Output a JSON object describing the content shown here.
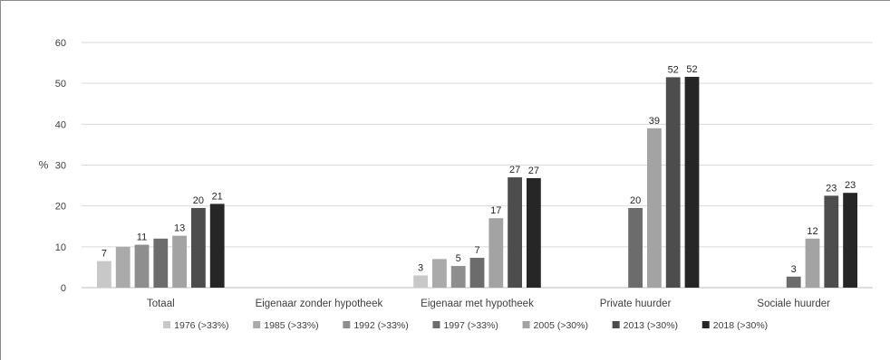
{
  "chart_data": {
    "type": "bar",
    "ylabel": "%",
    "ylim": [
      0,
      60
    ],
    "yticks": [
      0,
      10,
      20,
      30,
      40,
      50,
      60
    ],
    "grid": true,
    "legend_position": "bottom",
    "categories": [
      "Totaal",
      "Eigenaar zonder hypotheek",
      "Eigenaar met hypotheek",
      "Private huurder",
      "Sociale huurder"
    ],
    "series": [
      {
        "name": "1976 (>33%)",
        "color": "#c8c8c8",
        "values": [
          6.5,
          null,
          3,
          null,
          null
        ],
        "labels": [
          "7",
          "",
          "3",
          "",
          ""
        ]
      },
      {
        "name": "1985 (>33%)",
        "color": "#aaaaaa",
        "values": [
          10,
          null,
          7,
          null,
          null
        ],
        "labels": [
          "",
          "",
          "",
          "",
          ""
        ]
      },
      {
        "name": "1992 (>33%)",
        "color": "#8e8e8e",
        "values": [
          10.5,
          null,
          5.3,
          null,
          null
        ],
        "labels": [
          "11",
          "",
          "5",
          "",
          ""
        ]
      },
      {
        "name": "1997 (>33%)",
        "color": "#6c6c6c",
        "values": [
          12,
          null,
          7.3,
          19.5,
          2.7
        ],
        "labels": [
          "",
          "",
          "7",
          "20",
          "3"
        ]
      },
      {
        "name": "2005 (>30%)",
        "color": "#a3a3a3",
        "values": [
          12.7,
          null,
          17,
          39,
          12
        ],
        "labels": [
          "13",
          "",
          "17",
          "39",
          "12"
        ]
      },
      {
        "name": "2013 (>30%)",
        "color": "#4d4d4d",
        "values": [
          19.5,
          null,
          27,
          51.5,
          22.5
        ],
        "labels": [
          "20",
          "",
          "27",
          "52",
          "23"
        ]
      },
      {
        "name": "2018 (>30%)",
        "color": "#262626",
        "values": [
          20.5,
          null,
          26.8,
          51.6,
          23.2
        ],
        "labels": [
          "21",
          "",
          "27",
          "52",
          "23"
        ]
      }
    ]
  }
}
